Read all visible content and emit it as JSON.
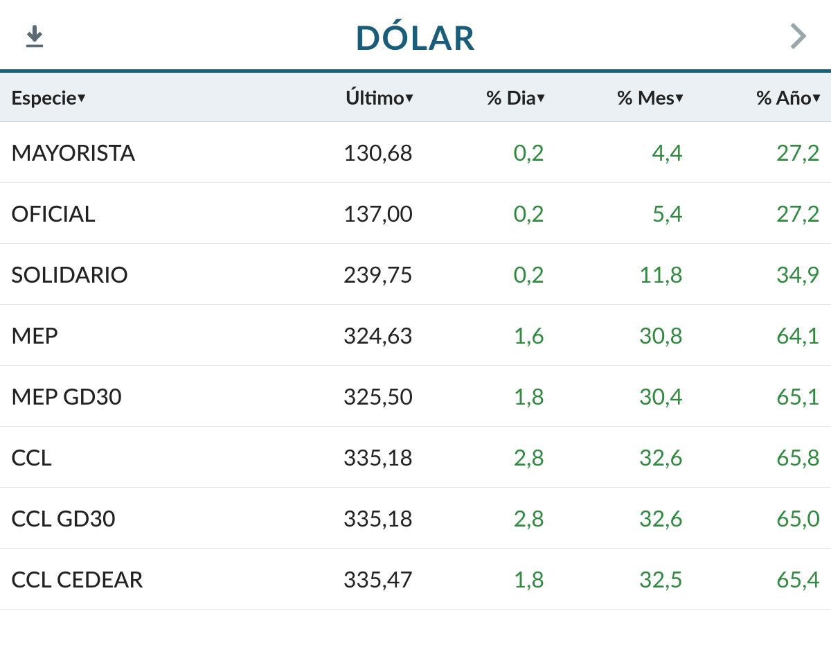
{
  "header": {
    "title": "DÓLAR"
  },
  "table": {
    "columns": [
      {
        "key": "especie",
        "label": "Especie",
        "align": "left"
      },
      {
        "key": "ultimo",
        "label": "Último",
        "align": "right"
      },
      {
        "key": "dia",
        "label": "% Dia",
        "align": "right"
      },
      {
        "key": "mes",
        "label": "% Mes",
        "align": "right"
      },
      {
        "key": "ano",
        "label": "% Año",
        "align": "right"
      }
    ],
    "rows": [
      {
        "especie": "MAYORISTA",
        "ultimo": "130,68",
        "dia": "0,2",
        "mes": "4,4",
        "ano": "27,2"
      },
      {
        "especie": "OFICIAL",
        "ultimo": "137,00",
        "dia": "0,2",
        "mes": "5,4",
        "ano": "27,2"
      },
      {
        "especie": "SOLIDARIO",
        "ultimo": "239,75",
        "dia": "0,2",
        "mes": "11,8",
        "ano": "34,9"
      },
      {
        "especie": "MEP",
        "ultimo": "324,63",
        "dia": "1,6",
        "mes": "30,8",
        "ano": "64,1"
      },
      {
        "especie": "MEP GD30",
        "ultimo": "325,50",
        "dia": "1,8",
        "mes": "30,4",
        "ano": "65,1"
      },
      {
        "especie": "CCL",
        "ultimo": "335,18",
        "dia": "2,8",
        "mes": "32,6",
        "ano": "65,8"
      },
      {
        "especie": "CCL GD30",
        "ultimo": "335,18",
        "dia": "2,8",
        "mes": "32,6",
        "ano": "65,0"
      },
      {
        "especie": "CCL CEDEAR",
        "ultimo": "335,47",
        "dia": "1,8",
        "mes": "32,5",
        "ano": "65,4"
      }
    ]
  },
  "styling": {
    "title_color": "#1a5d7a",
    "header_bg": "#eaf0f4",
    "positive_color": "#2e8b3e",
    "text_color": "#222222",
    "border_accent": "#1a5d7a",
    "icon_color": "#5a6a72",
    "chevron_color": "#9aa5ac",
    "title_fontsize": 48,
    "header_fontsize": 28,
    "cell_fontsize": 32
  }
}
